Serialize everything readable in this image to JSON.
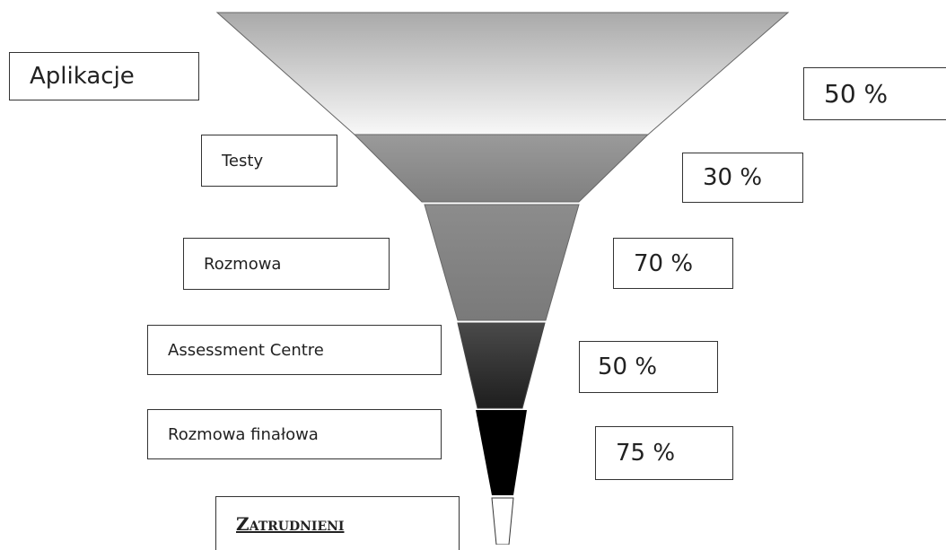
{
  "stages": [
    {
      "label": "Aplikacje",
      "rate": "50 %"
    },
    {
      "label": "Testy",
      "rate": "30 %"
    },
    {
      "label": "Rozmowa",
      "rate": "70 %"
    },
    {
      "label": "Assessment Centre",
      "rate": "50 %"
    },
    {
      "label": "Rozmowa finałowa",
      "rate": "75 %"
    }
  ],
  "result": "Zatrudnieni"
}
